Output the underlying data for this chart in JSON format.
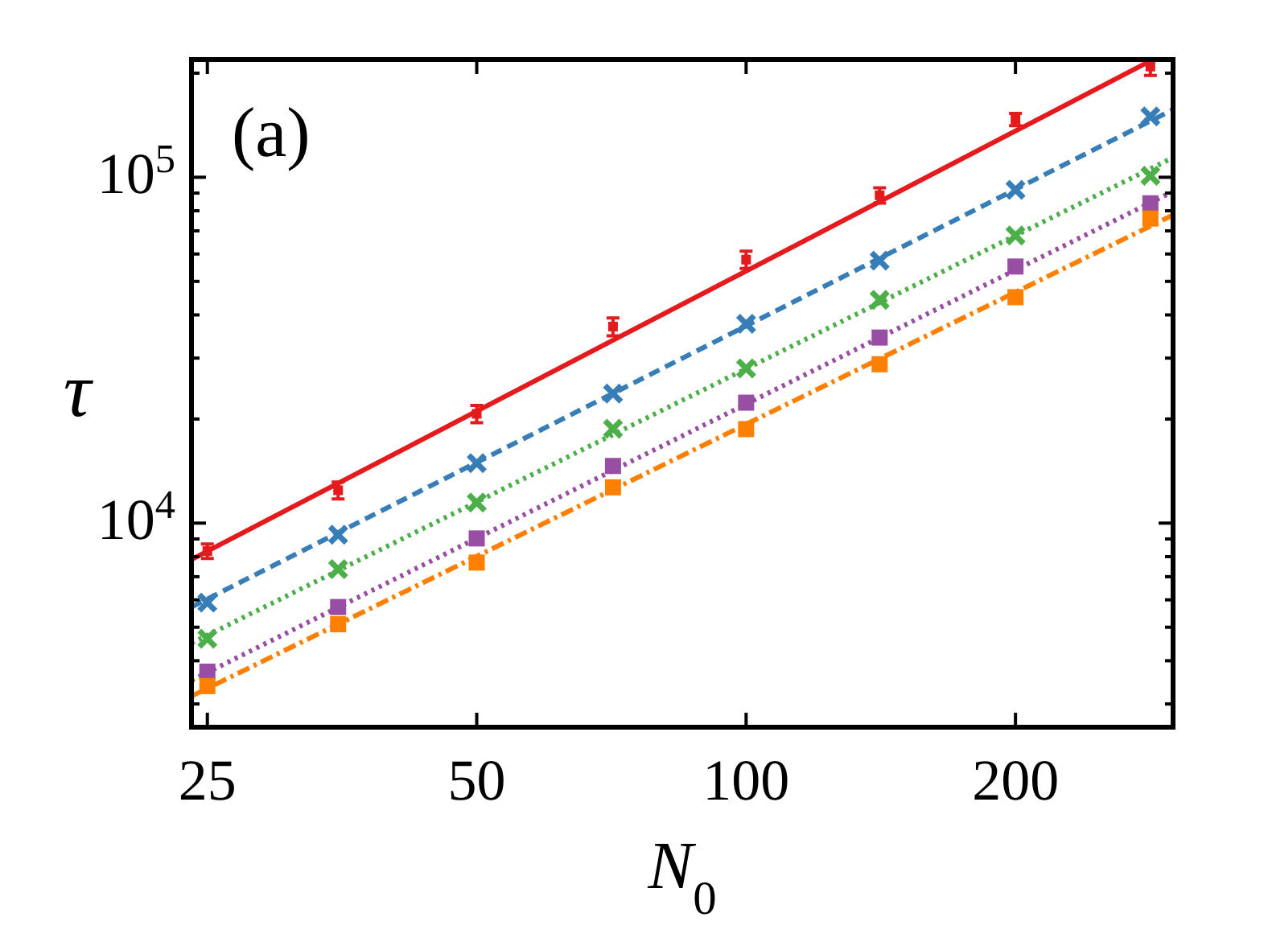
{
  "chart_data": {
    "type": "scatter",
    "xlabel": "N$_{0}$",
    "ylabel": "τ",
    "log": "xy",
    "grid": false,
    "annotations": [
      "(a)"
    ],
    "x": [
      25,
      35,
      50,
      71,
      100,
      141,
      200,
      283
    ],
    "xlim": [
      24,
      300
    ],
    "xticks": [
      25,
      50,
      100,
      200
    ],
    "ylim": [
      2570,
      219000
    ],
    "yticks": [
      {
        "value": 3000,
        "label": null
      },
      {
        "value": 4000,
        "label": null
      },
      {
        "value": 5000,
        "label": null
      },
      {
        "value": 6000,
        "label": null
      },
      {
        "value": 7000,
        "label": null
      },
      {
        "value": 8000,
        "label": null
      },
      {
        "value": 9000,
        "label": null
      },
      {
        "value": 10000,
        "label": "10$^{4}$"
      },
      {
        "value": 20000,
        "label": null
      },
      {
        "value": 30000,
        "label": null
      },
      {
        "value": 40000,
        "label": null
      },
      {
        "value": 50000,
        "label": null
      },
      {
        "value": 60000,
        "label": null
      },
      {
        "value": 70000,
        "label": null
      },
      {
        "value": 80000,
        "label": null
      },
      {
        "value": 90000,
        "label": null
      },
      {
        "value": 100000,
        "label": "10$^{5}$"
      },
      {
        "value": 200000,
        "label": null
      }
    ],
    "series": [
      {
        "color": "#e41a1c",
        "marker": "square",
        "values": [
          8300,
          12450,
          20700,
          37000,
          57800,
          88700,
          147000,
          209000
        ],
        "errors": [
          400,
          700,
          1200,
          2200,
          3300,
          4500,
          6000,
          12000
        ]
      },
      {
        "color": "#377eb8",
        "marker": "cross",
        "values": [
          5890,
          9260,
          14900,
          23700,
          37700,
          57400,
          92000,
          150000
        ]
      },
      {
        "color": "#4daf4a",
        "marker": "cross",
        "values": [
          4630,
          7360,
          11470,
          18750,
          28000,
          44200,
          67900,
          101000
        ]
      },
      {
        "color": "#984ea3",
        "marker": "square",
        "values": [
          3720,
          5720,
          9030,
          14630,
          22300,
          34400,
          55200,
          84100
        ]
      },
      {
        "color": "#ff7f00",
        "marker": "square",
        "values": [
          3380,
          5100,
          7690,
          12690,
          18700,
          28800,
          45000,
          76000
        ]
      },
      {
        "type": "line",
        "color": "#e41a1c",
        "line_style": "solid",
        "x": [
          24,
          280
        ],
        "values": [
          7850,
          214000
        ]
      },
      {
        "type": "line",
        "color": "#377eb8",
        "line_style": "dashed",
        "x": [
          24,
          300
        ],
        "values": [
          5720,
          157000
        ]
      },
      {
        "type": "line",
        "color": "#4daf4a",
        "line_style": "dotted",
        "x": [
          24,
          300
        ],
        "values": [
          4500,
          114000
        ]
      },
      {
        "type": "line",
        "color": "#984ea3",
        "line_style": "dotted",
        "x": [
          24,
          300
        ],
        "values": [
          3510,
          91000
        ]
      },
      {
        "type": "line",
        "color": "#ff7f00",
        "line_style": "dashdot",
        "x": [
          24,
          300
        ],
        "values": [
          3160,
          77800
        ]
      }
    ]
  }
}
